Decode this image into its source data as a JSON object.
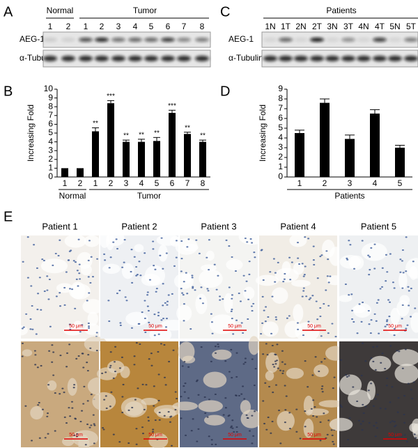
{
  "panel_labels": [
    "A",
    "B",
    "C",
    "D",
    "E"
  ],
  "blot_a": {
    "groups": [
      "Normal",
      "Tumor"
    ],
    "lanes": [
      "1",
      "2",
      "1",
      "2",
      "3",
      "4",
      "5",
      "6",
      "7",
      "8"
    ],
    "rows": [
      "AEG-1",
      "α-Tubulin"
    ]
  },
  "blot_c": {
    "header": "Patients",
    "lanes": [
      "1N",
      "1T",
      "2N",
      "2T",
      "3N",
      "3T",
      "4N",
      "4T",
      "5N",
      "5T"
    ],
    "rows": [
      "AEG-1",
      "α-Tubulin"
    ]
  },
  "chart_data": [
    {
      "type": "bar",
      "y_label": "Increasing Fold",
      "categories": [
        "1",
        "2",
        "1",
        "2",
        "3",
        "4",
        "5",
        "6",
        "7",
        "8"
      ],
      "values": [
        1,
        1,
        5.2,
        8.4,
        4.0,
        4.0,
        4.1,
        7.3,
        4.9,
        4.0
      ],
      "errors": [
        0,
        0,
        0.4,
        0.3,
        0.2,
        0.3,
        0.4,
        0.3,
        0.2,
        0.2
      ],
      "annotations": [
        null,
        null,
        "**",
        "***",
        "**",
        "**",
        "**",
        "***",
        "**",
        "**"
      ],
      "group_labels": [
        "Normal",
        "Tumor"
      ],
      "color": "#000000",
      "ylim": [
        0,
        10
      ],
      "yticks": [
        0,
        1,
        2,
        3,
        4,
        5,
        6,
        7,
        8,
        9,
        10
      ]
    },
    {
      "type": "bar",
      "y_label": "Increasing Fold",
      "x_label": "Patients",
      "categories": [
        "1",
        "2",
        "3",
        "4",
        "5"
      ],
      "values": [
        4.5,
        7.6,
        3.9,
        6.5,
        3.0
      ],
      "errors": [
        0.3,
        0.4,
        0.4,
        0.4,
        0.25
      ],
      "color": "#000000",
      "ylim": [
        0,
        9
      ],
      "yticks": [
        0,
        1,
        2,
        3,
        4,
        5,
        6,
        7,
        8,
        9
      ]
    }
  ],
  "histology": {
    "patients": [
      "Patient 1",
      "Patient 2",
      "Patient 3",
      "Patient 4",
      "Patient 5"
    ],
    "scale_bar": "50 μm"
  }
}
